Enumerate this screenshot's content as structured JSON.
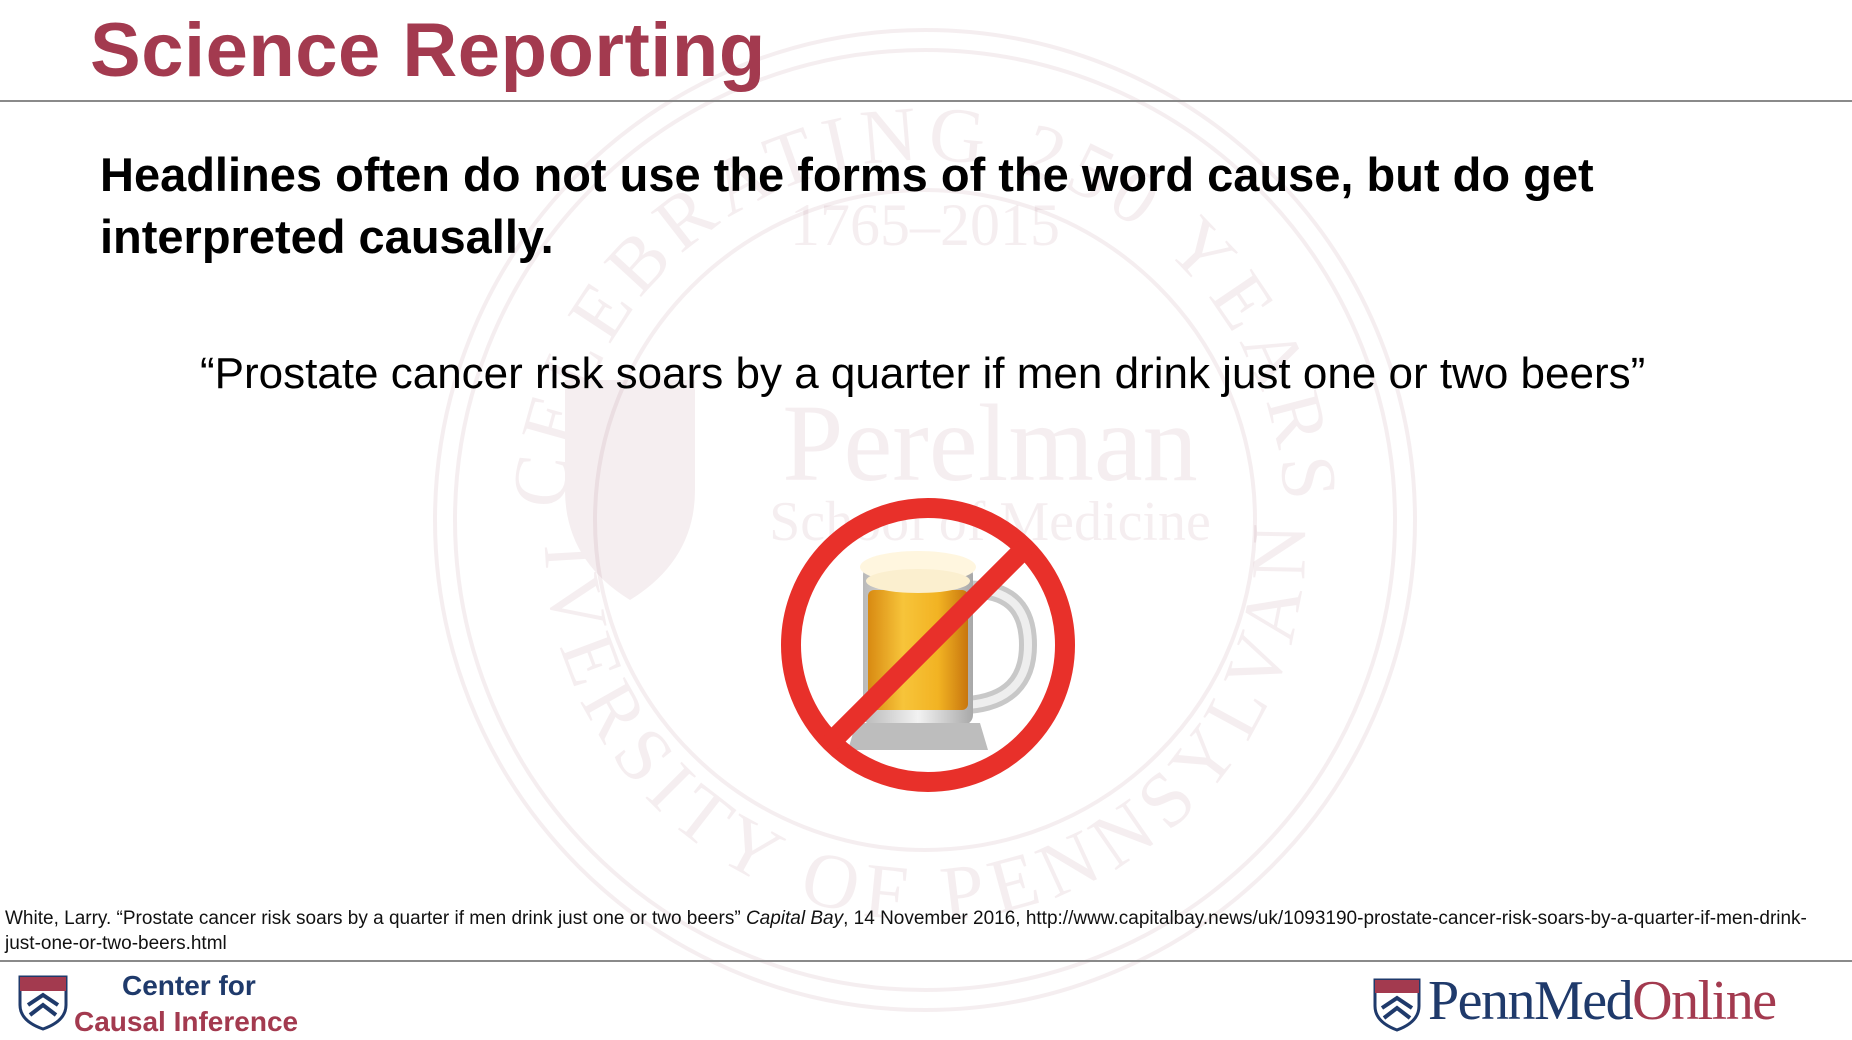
{
  "slide": {
    "title": "Science Reporting",
    "subheading": "Headlines often do not use the forms of the word cause, but do get interpreted causally.",
    "quote": "“Prostate cancer risk soars by a quarter if men drink just one or two beers”",
    "image_icon": "no-beer-icon"
  },
  "watermark": {
    "arc_top": "CELEBRATING 250 YEARS",
    "years": "1765–2015",
    "name": "Perelman",
    "school": "School of Medicine",
    "arc_bottom": "UNIVERSITY OF PENNSYLVANIA"
  },
  "citation": {
    "prefix": "White, Larry. “Prostate cancer risk soars by a quarter if men drink just one or two beers” ",
    "publication": "Capital Bay",
    "suffix": ", 14 November 2016, http://www.capitalbay.news/uk/1093190-prostate-cancer-risk-soars-by-a-quarter-if-men-drink-just-one-or-two-beers.html"
  },
  "footer": {
    "left_line1": "Center for",
    "left_line2": "Causal Inference",
    "right_penn": "Penn",
    "right_med": "Med",
    "right_online": "Online"
  },
  "colors": {
    "title": "#a33a4f",
    "navy": "#1f3a6b",
    "prohibition_red": "#e8302a",
    "beer": "#f2b323"
  }
}
